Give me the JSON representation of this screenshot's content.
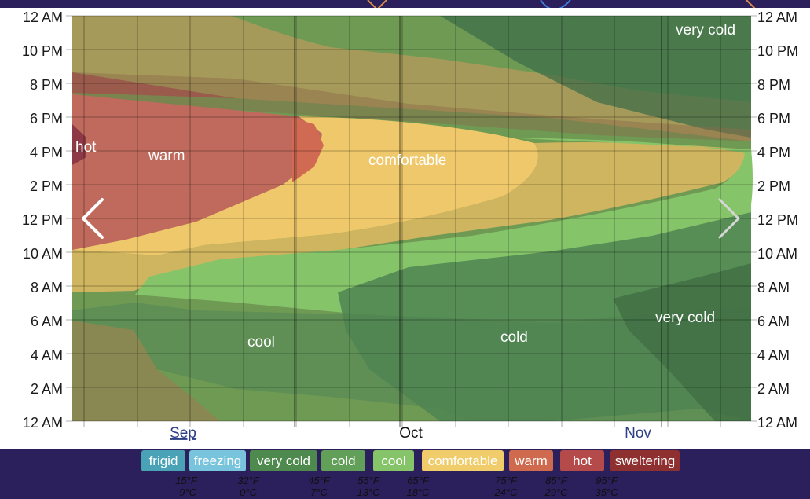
{
  "chart_data": {
    "type": "heatmap",
    "title": "",
    "xlabel": "",
    "ylabel": "",
    "x_months": [
      "Sep",
      "Oct",
      "Nov"
    ],
    "y_ticks_left": [
      "12 AM",
      "10 PM",
      "8 PM",
      "6 PM",
      "4 PM",
      "2 PM",
      "12 PM",
      "10 AM",
      "8 AM",
      "6 AM",
      "4 AM",
      "2 AM",
      "12 AM"
    ],
    "y_ticks_right": [
      "12 AM",
      "10 PM",
      "8 PM",
      "6 PM",
      "4 PM",
      "2 PM",
      "12 PM",
      "10 AM",
      "8 AM",
      "6 AM",
      "4 AM",
      "2 AM",
      "12 AM"
    ],
    "region_labels": [
      "hot",
      "warm",
      "comfortable",
      "very cold",
      "cool",
      "cold",
      "very cold"
    ],
    "categories": [
      "frigid",
      "freezing",
      "very cold",
      "cold",
      "cool",
      "comfortable",
      "warm",
      "hot",
      "sweltering"
    ],
    "category_colors": [
      "#4aa2b6",
      "#77c4dc",
      "#4e8a4e",
      "#62a05a",
      "#86c46a",
      "#f0cc6a",
      "#cf6a4e",
      "#b44a4a",
      "#8e3030"
    ],
    "thresholds": [
      {
        "f": "15°F",
        "c": "-9°C"
      },
      {
        "f": "32°F",
        "c": "0°C"
      },
      {
        "f": "45°F",
        "c": "7°C"
      },
      {
        "f": "55°F",
        "c": "13°C"
      },
      {
        "f": "65°F",
        "c": "18°C"
      },
      {
        "f": "75°F",
        "c": "24°C"
      },
      {
        "f": "85°F",
        "c": "29°C"
      },
      {
        "f": "95°F",
        "c": "35°C"
      }
    ],
    "grid": true
  },
  "colors": {
    "page_bg": "#2b1f5c",
    "plot_bg": "#ffffff",
    "month_link": "#2e3f86",
    "month_current": "#111111"
  },
  "icons": {
    "prev": "chevron-left-icon",
    "next": "chevron-right-icon"
  }
}
